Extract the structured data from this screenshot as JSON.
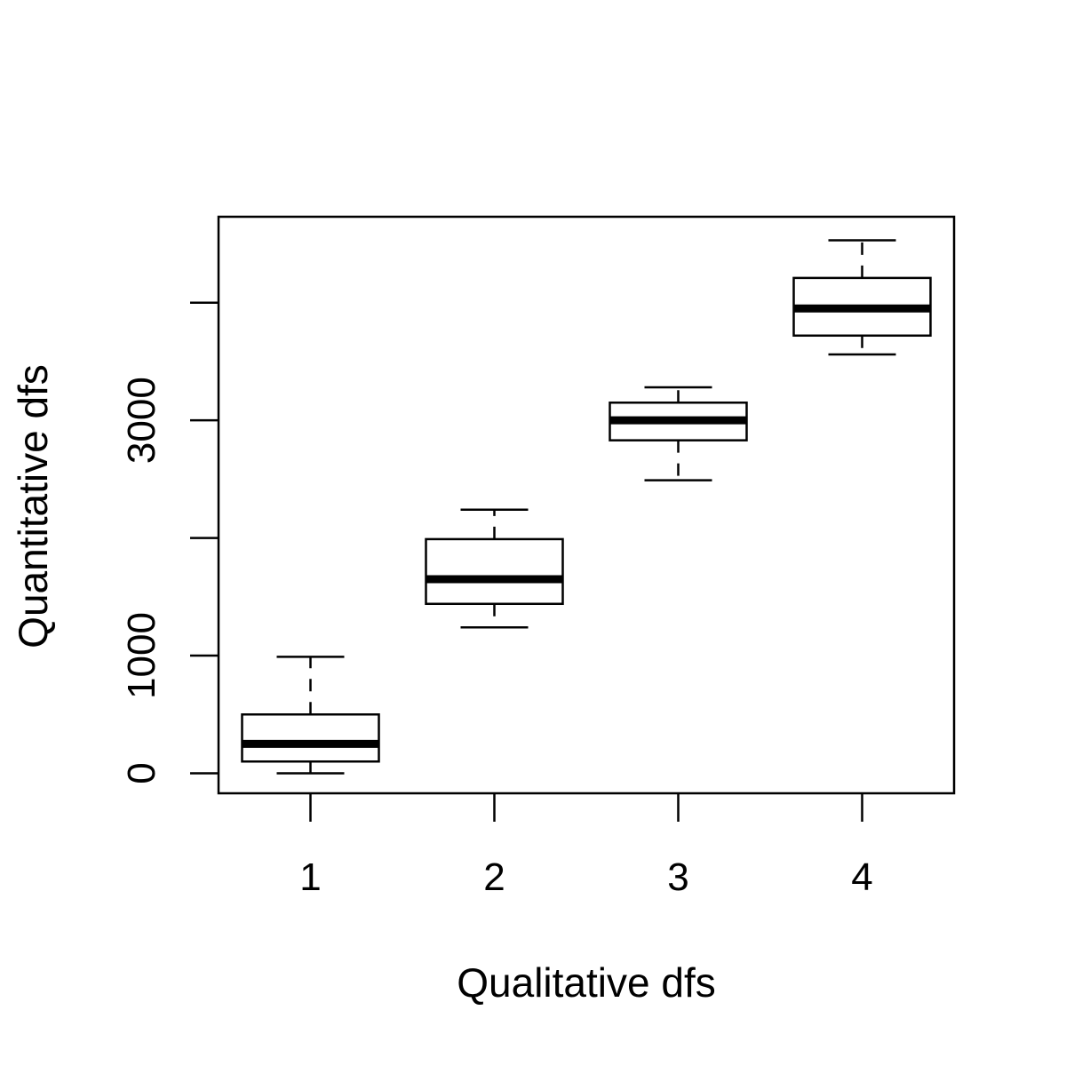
{
  "chart_data": {
    "type": "boxplot",
    "title": "",
    "xlabel": "Qualitative dfs",
    "ylabel": "Quantitative dfs",
    "categories": [
      "1",
      "2",
      "3",
      "4"
    ],
    "ylim": [
      -170,
      4730
    ],
    "y_ticks": [
      0,
      1000,
      2000,
      3000,
      4000
    ],
    "y_tick_labels": [
      "0",
      "1000",
      "",
      "3000",
      ""
    ],
    "boxes": [
      {
        "category": "1",
        "whisker_low": 0,
        "q1": 100,
        "median": 250,
        "q3": 500,
        "whisker_high": 990
      },
      {
        "category": "2",
        "whisker_low": 1240,
        "q1": 1440,
        "median": 1650,
        "q3": 1990,
        "whisker_high": 2240
      },
      {
        "category": "3",
        "whisker_low": 2490,
        "q1": 2830,
        "median": 3000,
        "q3": 3150,
        "whisker_high": 3280
      },
      {
        "category": "4",
        "whisker_low": 3560,
        "q1": 3720,
        "median": 3950,
        "q3": 4210,
        "whisker_high": 4530
      }
    ],
    "grid": false,
    "legend": "none"
  }
}
